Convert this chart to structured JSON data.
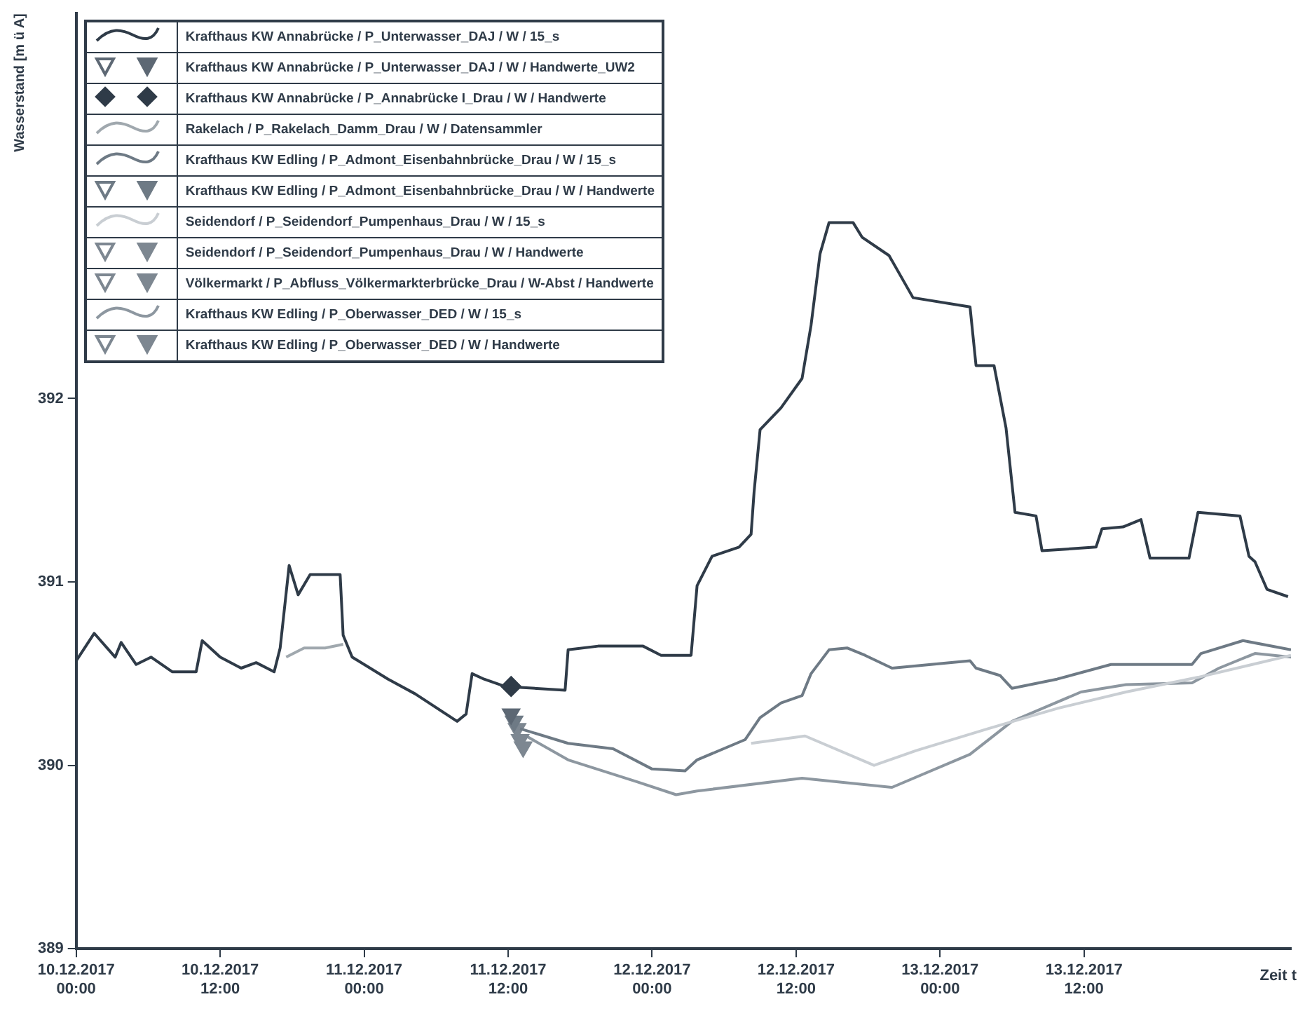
{
  "chart_data": {
    "type": "line",
    "ylabel": "Wasserstand [m ü A]",
    "xlabel": "Zeit t",
    "xlim": [
      "2017-12-10T00:00",
      "2017-12-14T05:15"
    ],
    "xticks": [
      {
        "value": "2017-12-10T00:00",
        "label": "10.12.2017\n00:00"
      },
      {
        "value": "2017-12-10T12:00",
        "label": "10.12.2017\n12:00"
      },
      {
        "value": "2017-12-11T00:00",
        "label": "11.12.2017\n00:00"
      },
      {
        "value": "2017-12-11T12:00",
        "label": "11.12.2017\n12:00"
      },
      {
        "value": "2017-12-12T00:00",
        "label": "12.12.2017\n00:00"
      },
      {
        "value": "2017-12-12T12:00",
        "label": "12.12.2017\n12:00"
      },
      {
        "value": "2017-12-13T00:00",
        "label": "13.12.2017\n00:00"
      },
      {
        "value": "2017-12-13T12:00",
        "label": "13.12.2017\n12:00"
      }
    ],
    "ylim": [
      389,
      394.1
    ],
    "yticks": [
      389,
      390,
      391,
      392
    ],
    "grid": false,
    "legend": "top left",
    "marker": "none",
    "series": [
      {
        "name": "Krafthaus KW Annabrücke / P_Unterwasser_DAJ / W / 15_s",
        "color": "#2f3b48",
        "x": [
          "2017-12-10T00:00",
          "2017-12-10T01:30",
          "2017-12-10T03:15",
          "2017-12-10T03:45",
          "2017-12-10T05:00",
          "2017-12-10T06:15",
          "2017-12-10T08:00",
          "2017-12-10T10:00",
          "2017-12-10T10:30",
          "2017-12-10T12:00",
          "2017-12-10T13:45",
          "2017-12-10T15:00",
          "2017-12-10T16:30",
          "2017-12-10T17:00",
          "2017-12-10T17:45",
          "2017-12-10T18:30",
          "2017-12-10T19:30",
          "2017-12-10T22:00",
          "2017-12-10T22:15",
          "2017-12-10T23:00",
          "2017-12-11T02:00",
          "2017-12-11T04:15",
          "2017-12-11T07:45",
          "2017-12-11T08:30",
          "2017-12-11T09:00",
          "2017-12-11T10:00",
          "2017-12-11T11:45",
          "2017-12-11T16:45",
          "2017-12-11T17:00",
          "2017-12-11T19:30",
          "2017-12-11T23:15",
          "2017-12-12T00:45",
          "2017-12-12T03:15",
          "2017-12-12T03:45",
          "2017-12-12T05:00",
          "2017-12-12T07:15",
          "2017-12-12T08:15",
          "2017-12-12T08:30",
          "2017-12-12T09:00",
          "2017-12-12T10:45",
          "2017-12-12T12:30",
          "2017-12-12T13:15",
          "2017-12-12T14:00",
          "2017-12-12T14:45",
          "2017-12-12T16:45",
          "2017-12-12T17:30",
          "2017-12-12T19:45",
          "2017-12-12T21:45",
          "2017-12-13T02:30",
          "2017-12-13T03:00",
          "2017-12-13T04:30",
          "2017-12-13T05:30",
          "2017-12-13T06:15",
          "2017-12-13T08:00",
          "2017-12-13T08:30",
          "2017-12-13T13:00",
          "2017-12-13T13:30",
          "2017-12-13T15:15",
          "2017-12-13T16:45",
          "2017-12-13T17:30",
          "2017-12-13T20:45",
          "2017-12-13T21:30",
          "2017-12-14T01:00",
          "2017-12-14T01:45",
          "2017-12-14T02:15",
          "2017-12-14T03:15",
          "2017-12-14T05:00"
        ],
        "values": [
          390.57,
          390.72,
          390.59,
          390.67,
          390.55,
          390.59,
          390.51,
          390.51,
          390.68,
          390.59,
          390.53,
          390.56,
          390.51,
          390.64,
          391.09,
          390.93,
          391.04,
          391.04,
          390.71,
          390.59,
          390.47,
          390.39,
          390.24,
          390.28,
          390.5,
          390.47,
          390.43,
          390.41,
          390.63,
          390.65,
          390.65,
          390.6,
          390.6,
          390.98,
          391.14,
          391.19,
          391.26,
          391.49,
          391.83,
          391.95,
          392.11,
          392.4,
          392.79,
          392.96,
          392.96,
          392.88,
          392.78,
          392.55,
          392.5,
          392.18,
          392.18,
          391.84,
          391.38,
          391.36,
          391.17,
          391.19,
          391.29,
          391.3,
          391.34,
          391.13,
          391.13,
          391.38,
          391.36,
          391.14,
          391.11,
          390.96,
          390.92
        ]
      },
      {
        "name": "Krafthaus KW Annabrücke / P_Unterwasser_DAJ / W / Handwerte_UW2",
        "color": "#5d6874",
        "type": "scatter",
        "marker": "triangle",
        "x": [
          "2017-12-11T12:15"
        ],
        "values": [
          390.28
        ]
      },
      {
        "name": "Krafthaus KW Annabrücke / P_Annabrücke I_Drau / W / Handwerte",
        "color": "#2f3b48",
        "type": "scatter",
        "marker": "diamond",
        "x": [
          "2017-12-11T12:15"
        ],
        "values": [
          390.43
        ]
      },
      {
        "name": "Rakelach / P_Rakelach_Damm_Drau / W / Datensammler",
        "color": "#a0a8ae",
        "x": [
          "2017-12-10T17:30",
          "2017-12-10T19:00",
          "2017-12-10T20:45",
          "2017-12-10T22:15"
        ],
        "values": [
          390.59,
          390.64,
          390.64,
          390.66
        ]
      },
      {
        "name": "Krafthaus KW Edling / P_Admont_Eisenbahnbrücke_Drau / W / 15_s",
        "color": "#6e7a85",
        "x": [
          "2017-12-11T13:00",
          "2017-12-11T17:00",
          "2017-12-11T20:45",
          "2017-12-12T00:00",
          "2017-12-12T02:45",
          "2017-12-12T03:45",
          "2017-12-12T07:45",
          "2017-12-12T09:00",
          "2017-12-12T10:45",
          "2017-12-12T12:30",
          "2017-12-12T13:15",
          "2017-12-12T14:45",
          "2017-12-12T16:15",
          "2017-12-12T17:45",
          "2017-12-12T20:00",
          "2017-12-13T02:30",
          "2017-12-13T03:00",
          "2017-12-13T05:00",
          "2017-12-13T06:00",
          "2017-12-13T09:45",
          "2017-12-13T14:15",
          "2017-12-13T21:00",
          "2017-12-13T21:45",
          "2017-12-14T01:15",
          "2017-12-14T05:15"
        ],
        "values": [
          390.2,
          390.12,
          390.09,
          389.98,
          389.97,
          390.03,
          390.14,
          390.26,
          390.34,
          390.38,
          390.5,
          390.63,
          390.64,
          390.6,
          390.53,
          390.57,
          390.53,
          390.49,
          390.42,
          390.47,
          390.55,
          390.55,
          390.61,
          390.68,
          390.63
        ]
      },
      {
        "name": "Krafthaus KW Edling / P_Admont_Eisenbahnbrücke_Drau / W / Handwerte",
        "color": "#6e7a85",
        "type": "scatter",
        "marker": "triangle",
        "x": [
          "2017-12-11T12:30"
        ],
        "values": [
          390.24
        ]
      },
      {
        "name": "Seidendorf / P_Seidendorf_Pumpenhaus_Drau / W / 15_s",
        "color": "#c9ced3",
        "x": [
          "2017-12-12T08:15",
          "2017-12-12T12:45",
          "2017-12-12T18:30",
          "2017-12-12T22:00",
          "2017-12-13T04:00",
          "2017-12-13T09:45",
          "2017-12-13T15:30",
          "2017-12-13T21:30",
          "2017-12-14T05:15"
        ],
        "values": [
          390.12,
          390.16,
          390.0,
          390.08,
          390.2,
          390.31,
          390.4,
          390.48,
          390.6
        ]
      },
      {
        "name": "Seidendorf / P_Seidendorf_Pumpenhaus_Drau / W / Handwerte",
        "color": "#7d8791",
        "type": "scatter",
        "marker": "triangle",
        "x": [
          "2017-12-11T12:45"
        ],
        "values": [
          390.2
        ]
      },
      {
        "name": "Völkermarkt / P_Abfluss_Völkermarkterbrücke_Drau / W-Abst / Handwerte",
        "color": "#7d8791",
        "type": "scatter",
        "marker": "triangle",
        "x": [
          "2017-12-11T13:00"
        ],
        "values": [
          390.14
        ]
      },
      {
        "name": "Krafthaus KW Edling / P_Oberwasser_DED / W / 15_s",
        "color": "#8d97a0",
        "x": [
          "2017-12-11T13:30",
          "2017-12-11T17:00",
          "2017-12-11T22:45",
          "2017-12-12T02:00",
          "2017-12-12T03:45",
          "2017-12-12T12:30",
          "2017-12-12T20:00",
          "2017-12-13T02:30",
          "2017-12-13T06:00",
          "2017-12-13T11:45",
          "2017-12-13T15:30",
          "2017-12-13T21:00",
          "2017-12-13T23:15",
          "2017-12-14T02:15",
          "2017-12-14T05:15"
        ],
        "values": [
          390.16,
          390.03,
          389.91,
          389.84,
          389.86,
          389.93,
          389.88,
          390.06,
          390.24,
          390.4,
          390.44,
          390.45,
          390.53,
          390.61,
          390.59
        ]
      },
      {
        "name": "Krafthaus KW Edling / P_Oberwasser_DED / W / Handwerte",
        "color": "#7d8791",
        "type": "scatter",
        "marker": "triangle",
        "x": [
          "2017-12-11T13:15"
        ],
        "values": [
          390.1
        ]
      }
    ]
  }
}
